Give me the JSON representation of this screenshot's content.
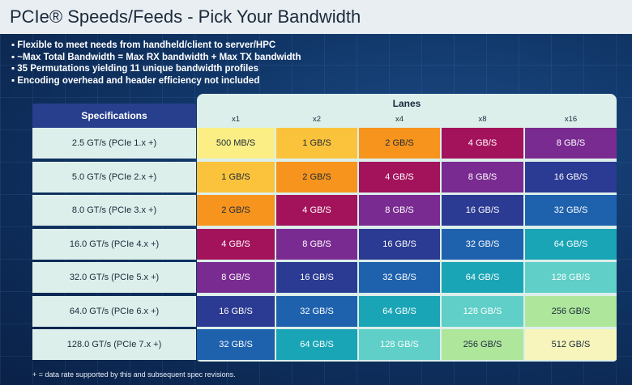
{
  "title": "PCIe® Speeds/Feeds - Pick Your Bandwidth",
  "bullets": [
    "Flexible to meet needs from handheld/client to server/HPC",
    "~Max Total Bandwidth = Max RX bandwidth + Max TX bandwidth",
    "35 Permutations yielding 11 unique bandwidth profiles",
    "Encoding overhead and header efficiency not included"
  ],
  "table": {
    "spec_header": "Specifications",
    "lanes_header": "Lanes",
    "lanes": [
      "x1",
      "x2",
      "x4",
      "x8",
      "x16"
    ],
    "rows": [
      {
        "spec": "2.5 GT/s (PCIe 1.x +)",
        "cells": [
          "500 MB/S",
          "1 GB/S",
          "2 GB/S",
          "4 GB/S",
          "8 GB/S"
        ]
      },
      {
        "spec": "5.0 GT/s (PCIe 2.x +)",
        "cells": [
          "1 GB/S",
          "2 GB/S",
          "4 GB/S",
          "8 GB/S",
          "16 GB/S"
        ]
      },
      {
        "spec": "8.0 GT/s (PCIe 3.x +)",
        "cells": [
          "2 GB/S",
          "4 GB/S",
          "8 GB/S",
          "16 GB/S",
          "32 GB/S"
        ]
      },
      {
        "spec": "16.0 GT/s (PCIe 4.x +)",
        "cells": [
          "4 GB/S",
          "8 GB/S",
          "16 GB/S",
          "32 GB/S",
          "64 GB/S"
        ]
      },
      {
        "spec": "32.0 GT/s (PCIe 5.x +)",
        "cells": [
          "8 GB/S",
          "16 GB/S",
          "32 GB/S",
          "64 GB/S",
          "128 GB/S"
        ]
      },
      {
        "spec": "64.0 GT/s (PCIe 6.x +)",
        "cells": [
          "16 GB/S",
          "32 GB/S",
          "64 GB/S",
          "128 GB/S",
          "256 GB/S"
        ]
      },
      {
        "spec": "128.0 GT/s (PCIe 7.x +)",
        "cells": [
          "32 GB/S",
          "64 GB/S",
          "128 GB/S",
          "256 GB/S",
          "512 GB/S"
        ]
      }
    ]
  },
  "colors": {
    "500 MB/S": "#fbee85",
    "1 GB/S": "#fbc33c",
    "2 GB/S": "#f7941d",
    "4 GB/S": "#a3135c",
    "8 GB/S": "#7a2b91",
    "16 GB/S": "#2b3a92",
    "32 GB/S": "#1e62ae",
    "64 GB/S": "#1aa5b6",
    "128 GB/S": "#5fcfc8",
    "256 GB/S": "#aee69c",
    "512 GB/S": "#f7f5bb"
  },
  "footnote": "+ = data rate supported by this and subsequent spec revisions."
}
